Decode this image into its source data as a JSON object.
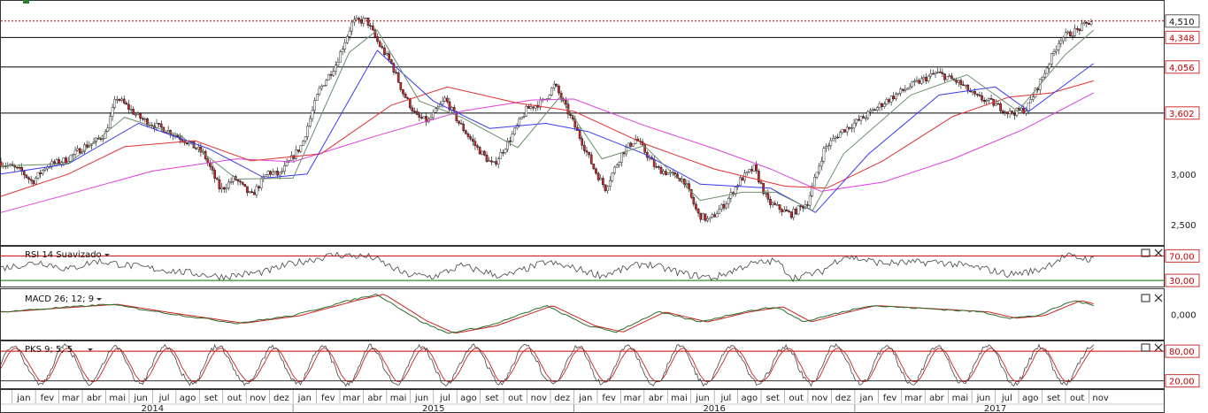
{
  "chart_data": {
    "type": "candlestick",
    "main": {
      "price_axis_labels": [
        "3,000",
        "2,500"
      ],
      "price_boxes": [
        {
          "value": "4,510",
          "level": 4510,
          "style": "last"
        },
        {
          "value": "4,348",
          "level": 4348,
          "style": "line"
        },
        {
          "value": "4,056",
          "level": 4056,
          "style": "line"
        },
        {
          "value": "3,602",
          "level": 3602,
          "style": "line"
        }
      ],
      "ylim": [
        2300,
        4700
      ],
      "price_path": [
        [
          2013.96,
          3120
        ],
        [
          2014.04,
          3030
        ],
        [
          2014.08,
          2920
        ],
        [
          2014.13,
          3080
        ],
        [
          2014.2,
          3140
        ],
        [
          2014.27,
          3280
        ],
        [
          2014.3,
          3310
        ],
        [
          2014.34,
          3400
        ],
        [
          2014.38,
          3760
        ],
        [
          2014.42,
          3660
        ],
        [
          2014.46,
          3560
        ],
        [
          2014.5,
          3500
        ],
        [
          2014.56,
          3430
        ],
        [
          2014.62,
          3340
        ],
        [
          2014.69,
          3200
        ],
        [
          2014.75,
          2840
        ],
        [
          2014.8,
          2960
        ],
        [
          2014.86,
          2780
        ],
        [
          2014.92,
          3020
        ],
        [
          2014.96,
          2990
        ],
        [
          2015.04,
          3290
        ],
        [
          2015.1,
          3820
        ],
        [
          2015.16,
          4080
        ],
        [
          2015.22,
          4500
        ],
        [
          2015.27,
          4520
        ],
        [
          2015.31,
          4300
        ],
        [
          2015.36,
          4080
        ],
        [
          2015.4,
          3800
        ],
        [
          2015.45,
          3560
        ],
        [
          2015.49,
          3520
        ],
        [
          2015.55,
          3740
        ],
        [
          2015.6,
          3500
        ],
        [
          2015.66,
          3270
        ],
        [
          2015.72,
          3080
        ],
        [
          2015.78,
          3340
        ],
        [
          2015.84,
          3640
        ],
        [
          2015.9,
          3720
        ],
        [
          2015.94,
          3880
        ],
        [
          2016.0,
          3540
        ],
        [
          2016.04,
          3300
        ],
        [
          2016.08,
          3050
        ],
        [
          2016.12,
          2860
        ],
        [
          2016.18,
          3210
        ],
        [
          2016.23,
          3350
        ],
        [
          2016.3,
          3060
        ],
        [
          2016.35,
          3000
        ],
        [
          2016.4,
          2940
        ],
        [
          2016.45,
          2600
        ],
        [
          2016.49,
          2540
        ],
        [
          2016.55,
          2720
        ],
        [
          2016.6,
          2940
        ],
        [
          2016.65,
          3060
        ],
        [
          2016.7,
          2720
        ],
        [
          2016.78,
          2600
        ],
        [
          2016.84,
          2720
        ],
        [
          2016.9,
          3250
        ],
        [
          2016.96,
          3420
        ],
        [
          2017.04,
          3560
        ],
        [
          2017.12,
          3720
        ],
        [
          2017.2,
          3860
        ],
        [
          2017.3,
          4000
        ],
        [
          2017.38,
          3900
        ],
        [
          2017.44,
          3760
        ],
        [
          2017.5,
          3700
        ],
        [
          2017.56,
          3600
        ],
        [
          2017.62,
          3640
        ],
        [
          2017.68,
          3980
        ],
        [
          2017.74,
          4340
        ],
        [
          2017.8,
          4420
        ],
        [
          2017.85,
          4510
        ]
      ],
      "sma_short_path": [
        [
          2013.96,
          3080
        ],
        [
          2014.2,
          3100
        ],
        [
          2014.4,
          3560
        ],
        [
          2014.6,
          3380
        ],
        [
          2014.8,
          2950
        ],
        [
          2015.0,
          2960
        ],
        [
          2015.2,
          4200
        ],
        [
          2015.3,
          4420
        ],
        [
          2015.45,
          3720
        ],
        [
          2015.6,
          3560
        ],
        [
          2015.8,
          3260
        ],
        [
          2015.95,
          3760
        ],
        [
          2016.1,
          3150
        ],
        [
          2016.25,
          3280
        ],
        [
          2016.45,
          2740
        ],
        [
          2016.6,
          2820
        ],
        [
          2016.72,
          2820
        ],
        [
          2016.85,
          2640
        ],
        [
          2016.96,
          3200
        ],
        [
          2017.2,
          3780
        ],
        [
          2017.4,
          3980
        ],
        [
          2017.58,
          3620
        ],
        [
          2017.75,
          4180
        ],
        [
          2017.85,
          4420
        ]
      ],
      "sma_mid_path": [
        [
          2013.96,
          3000
        ],
        [
          2014.2,
          3100
        ],
        [
          2014.45,
          3500
        ],
        [
          2014.7,
          3250
        ],
        [
          2014.9,
          2960
        ],
        [
          2015.05,
          3000
        ],
        [
          2015.3,
          4220
        ],
        [
          2015.5,
          3720
        ],
        [
          2015.7,
          3450
        ],
        [
          2015.9,
          3500
        ],
        [
          2016.05,
          3420
        ],
        [
          2016.25,
          3200
        ],
        [
          2016.45,
          2900
        ],
        [
          2016.7,
          2860
        ],
        [
          2016.86,
          2620
        ],
        [
          2017.05,
          3200
        ],
        [
          2017.3,
          3780
        ],
        [
          2017.5,
          3860
        ],
        [
          2017.62,
          3620
        ],
        [
          2017.85,
          4090
        ]
      ],
      "sma_long_path": [
        [
          2013.96,
          2780
        ],
        [
          2014.2,
          3000
        ],
        [
          2014.4,
          3270
        ],
        [
          2014.65,
          3330
        ],
        [
          2014.85,
          3130
        ],
        [
          2015.1,
          3200
        ],
        [
          2015.35,
          3680
        ],
        [
          2015.55,
          3860
        ],
        [
          2015.8,
          3700
        ],
        [
          2016.0,
          3620
        ],
        [
          2016.25,
          3300
        ],
        [
          2016.5,
          3050
        ],
        [
          2016.75,
          2880
        ],
        [
          2016.9,
          2860
        ],
        [
          2017.1,
          3130
        ],
        [
          2017.35,
          3570
        ],
        [
          2017.55,
          3760
        ],
        [
          2017.7,
          3800
        ],
        [
          2017.85,
          3920
        ]
      ],
      "sma_vlong_path": [
        [
          2013.96,
          2620
        ],
        [
          2014.2,
          2800
        ],
        [
          2014.5,
          3030
        ],
        [
          2014.8,
          3150
        ],
        [
          2015.0,
          3120
        ],
        [
          2015.3,
          3380
        ],
        [
          2015.6,
          3620
        ],
        [
          2015.85,
          3730
        ],
        [
          2016.0,
          3740
        ],
        [
          2016.25,
          3480
        ],
        [
          2016.5,
          3250
        ],
        [
          2016.7,
          3050
        ],
        [
          2016.88,
          2830
        ],
        [
          2017.1,
          2920
        ],
        [
          2017.35,
          3150
        ],
        [
          2017.6,
          3440
        ],
        [
          2017.85,
          3800
        ]
      ]
    },
    "rsi": {
      "title": "RSI 14 Suavizado",
      "boxes": [
        {
          "value": "70,00",
          "level": 70
        },
        {
          "value": "30,00",
          "level": 30
        }
      ],
      "ylim": [
        20,
        85
      ],
      "path": [
        [
          2013.96,
          50
        ],
        [
          2014.1,
          60
        ],
        [
          2014.2,
          48
        ],
        [
          2014.3,
          62
        ],
        [
          2014.45,
          52
        ],
        [
          2014.6,
          44
        ],
        [
          2014.75,
          36
        ],
        [
          2014.9,
          44
        ],
        [
          2015.0,
          58
        ],
        [
          2015.15,
          72
        ],
        [
          2015.28,
          68
        ],
        [
          2015.4,
          40
        ],
        [
          2015.5,
          36
        ],
        [
          2015.6,
          54
        ],
        [
          2015.75,
          36
        ],
        [
          2015.9,
          60
        ],
        [
          2016.0,
          50
        ],
        [
          2016.1,
          38
        ],
        [
          2016.25,
          58
        ],
        [
          2016.4,
          40
        ],
        [
          2016.5,
          34
        ],
        [
          2016.62,
          56
        ],
        [
          2016.72,
          62
        ],
        [
          2016.78,
          34
        ],
        [
          2016.88,
          44
        ],
        [
          2016.96,
          70
        ],
        [
          2017.1,
          58
        ],
        [
          2017.3,
          60
        ],
        [
          2017.45,
          50
        ],
        [
          2017.55,
          40
        ],
        [
          2017.65,
          46
        ],
        [
          2017.75,
          70
        ],
        [
          2017.85,
          64
        ]
      ]
    },
    "macd": {
      "title": "MACD 26; 12; 9",
      "boxes": [
        {
          "value": "0,000",
          "level": 0
        }
      ],
      "ylim": [
        -1,
        1
      ],
      "path": [
        [
          2013.96,
          0.1
        ],
        [
          2014.15,
          0.25
        ],
        [
          2014.35,
          0.4
        ],
        [
          2014.55,
          0.05
        ],
        [
          2014.8,
          -0.35
        ],
        [
          2015.0,
          -0.05
        ],
        [
          2015.2,
          0.55
        ],
        [
          2015.3,
          0.8
        ],
        [
          2015.45,
          -0.25
        ],
        [
          2015.55,
          -0.75
        ],
        [
          2015.7,
          -0.45
        ],
        [
          2015.9,
          0.35
        ],
        [
          2016.05,
          -0.45
        ],
        [
          2016.15,
          -0.7
        ],
        [
          2016.3,
          0.1
        ],
        [
          2016.45,
          -0.3
        ],
        [
          2016.6,
          0.1
        ],
        [
          2016.72,
          0.3
        ],
        [
          2016.82,
          -0.3
        ],
        [
          2016.92,
          0.0
        ],
        [
          2017.05,
          0.35
        ],
        [
          2017.3,
          0.2
        ],
        [
          2017.45,
          0.1
        ],
        [
          2017.55,
          -0.15
        ],
        [
          2017.65,
          -0.05
        ],
        [
          2017.78,
          0.55
        ],
        [
          2017.85,
          0.35
        ]
      ]
    },
    "pks": {
      "title": "PKS 9; 5; 5",
      "boxes": [
        {
          "value": "80,00",
          "level": 80
        },
        {
          "value": "20,00",
          "level": 20
        }
      ],
      "ylim": [
        5,
        100
      ]
    },
    "x_axis": {
      "range": [
        2013.96,
        2018.1
      ],
      "months": [
        "jan",
        "fev",
        "mar",
        "abr",
        "mai",
        "jun",
        "jul",
        "ago",
        "set",
        "out",
        "nov",
        "dez",
        "jan",
        "fev",
        "mar",
        "abr",
        "mai",
        "jun",
        "jul",
        "ago",
        "set",
        "out",
        "nov",
        "dez",
        "jan",
        "fev",
        "mar",
        "abr",
        "mai",
        "jun",
        "jul",
        "ago",
        "set",
        "out",
        "nov",
        "dez",
        "jan",
        "fev",
        "mar",
        "abr",
        "mai",
        "jun",
        "jul",
        "ago",
        "set",
        "out",
        "nov"
      ],
      "years": [
        "2014",
        "2015",
        "2016",
        "2017"
      ]
    },
    "colors": {
      "price_up": "#2e7d32",
      "price_down": "#c62828",
      "sma_short": "#6b8e6b",
      "sma_mid": "#3a3af0",
      "sma_long": "#e03030",
      "sma_vlong": "#e040e0",
      "last_line": "#cc0000",
      "osc_line": "#444444",
      "osc_signal": "#cc2222",
      "band_upper": "#cc0000",
      "band_lower": "#007700"
    }
  }
}
